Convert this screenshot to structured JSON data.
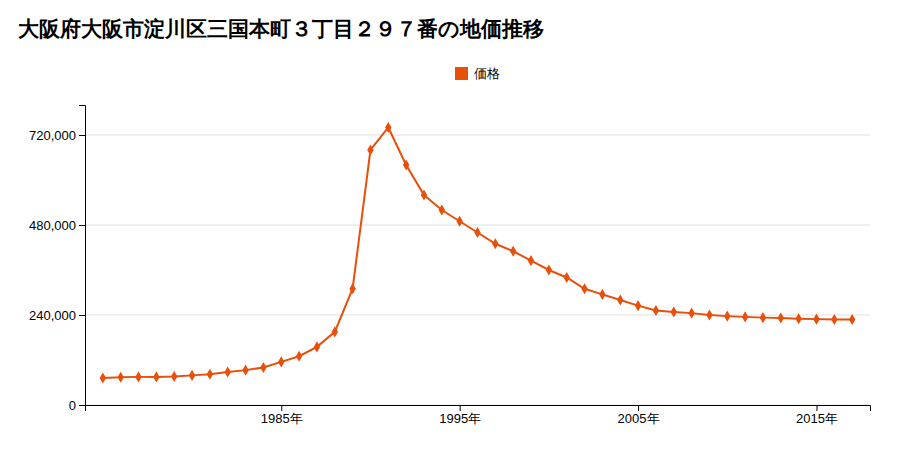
{
  "chart_data": {
    "type": "line",
    "title": "大阪府大阪市淀川区三国本町３丁目２９７番の地価推移",
    "x": [
      1975,
      1976,
      1977,
      1978,
      1979,
      1980,
      1981,
      1982,
      1983,
      1984,
      1985,
      1986,
      1987,
      1988,
      1989,
      1990,
      1991,
      1992,
      1993,
      1994,
      1995,
      1996,
      1997,
      1998,
      1999,
      2000,
      2001,
      2002,
      2003,
      2004,
      2005,
      2006,
      2007,
      2008,
      2009,
      2010,
      2011,
      2012,
      2013,
      2014,
      2015,
      2016,
      2017
    ],
    "series": [
      {
        "name": "価格",
        "color": "#E8500A",
        "marker": "diamond",
        "values": [
          72000,
          74000,
          75000,
          75000,
          76000,
          79000,
          82000,
          88000,
          93000,
          100000,
          115000,
          130000,
          155000,
          195000,
          310000,
          680000,
          740000,
          640000,
          560000,
          520000,
          490000,
          460000,
          430000,
          410000,
          385000,
          360000,
          340000,
          310000,
          295000,
          280000,
          265000,
          252000,
          248000,
          245000,
          240000,
          237000,
          235000,
          233000,
          232000,
          230000,
          229000,
          228000,
          228000
        ]
      }
    ],
    "xlim": [
      1974,
      2018
    ],
    "xticks": [
      {
        "value": 1985,
        "label": "1985年"
      },
      {
        "value": 1995,
        "label": "1995年"
      },
      {
        "value": 2005,
        "label": "2005年"
      },
      {
        "value": 2015,
        "label": "2015年"
      }
    ],
    "ylim": [
      0,
      800000
    ],
    "yticks": [
      0,
      {
        "value": 240000,
        "label": "240,000"
      },
      {
        "value": 480000,
        "label": "480,000"
      },
      {
        "value": 720000,
        "label": "720,000"
      }
    ],
    "grid": true,
    "legend": "top"
  }
}
